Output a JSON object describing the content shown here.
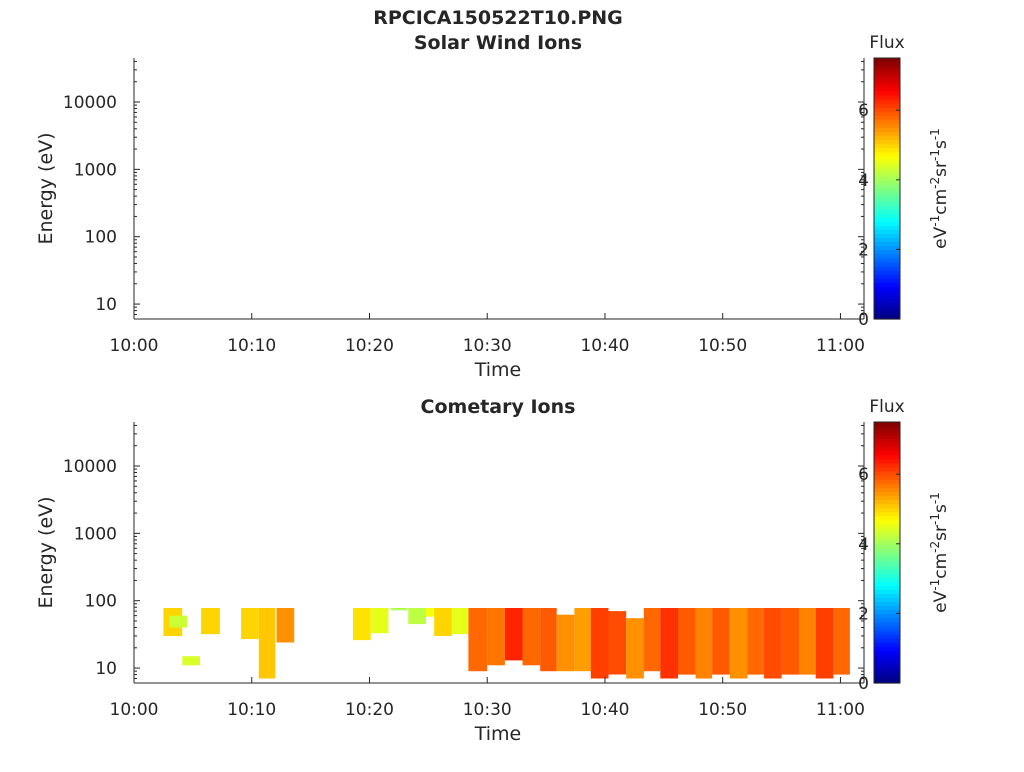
{
  "main_title": "RPCICA150522T10.PNG",
  "colorbar": {
    "label": "Flux",
    "unit_parts": [
      "eV",
      "-1",
      "cm",
      "-2",
      "sr",
      "-1",
      "s",
      "-1"
    ],
    "ticks": [
      "0",
      "2",
      "4",
      "6"
    ],
    "range": [
      0,
      7.5
    ],
    "colormap": "jet"
  },
  "chart_data": [
    {
      "type": "heatmap",
      "title": "Solar Wind Ions",
      "xlabel": "Time",
      "ylabel": "Energy (eV)",
      "x_ticks": [
        "10:00",
        "10:10",
        "10:20",
        "10:30",
        "10:40",
        "10:50",
        "11:00"
      ],
      "x_range_minutes": [
        0,
        62
      ],
      "y_scale": "log",
      "y_ticks": [
        "10",
        "100",
        "1000",
        "10000"
      ],
      "y_range": [
        6,
        45000
      ],
      "cells": []
    },
    {
      "type": "heatmap",
      "title": "Cometary Ions",
      "xlabel": "Time",
      "ylabel": "Energy (eV)",
      "x_ticks": [
        "10:00",
        "10:10",
        "10:20",
        "10:30",
        "10:40",
        "10:50",
        "11:00"
      ],
      "x_range_minutes": [
        0,
        62
      ],
      "y_scale": "log",
      "y_ticks": [
        "10",
        "100",
        "1000",
        "10000"
      ],
      "y_range": [
        6,
        45000
      ],
      "cells": [
        {
          "t": [
            2.5,
            4.1
          ],
          "e": [
            30,
            78
          ],
          "flux": 5.0
        },
        {
          "t": [
            3.0,
            4.5
          ],
          "e": [
            40,
            60
          ],
          "flux": 4.3
        },
        {
          "t": [
            4.1,
            5.6
          ],
          "e": [
            11,
            15
          ],
          "flux": 4.4
        },
        {
          "t": [
            5.7,
            7.3
          ],
          "e": [
            32,
            78
          ],
          "flux": 5.0
        },
        {
          "t": [
            9.1,
            10.6
          ],
          "e": [
            27,
            78
          ],
          "flux": 5.0
        },
        {
          "t": [
            10.6,
            12.0
          ],
          "e": [
            7,
            78
          ],
          "flux": 5.1
        },
        {
          "t": [
            12.1,
            13.6
          ],
          "e": [
            24,
            78
          ],
          "flux": 5.5
        },
        {
          "t": [
            18.6,
            20.1
          ],
          "e": [
            26,
            78
          ],
          "flux": 4.9
        },
        {
          "t": [
            20.1,
            21.6
          ],
          "e": [
            33,
            78
          ],
          "flux": 4.5
        },
        {
          "t": [
            21.8,
            23.2
          ],
          "e": [
            72,
            78
          ],
          "flux": 4.1
        },
        {
          "t": [
            23.3,
            24.8
          ],
          "e": [
            45,
            78
          ],
          "flux": 4.2
        },
        {
          "t": [
            24.8,
            26.2
          ],
          "e": [
            58,
            78
          ],
          "flux": 4.6
        },
        {
          "t": [
            25.5,
            27.0
          ],
          "e": [
            30,
            78
          ],
          "flux": 5.0
        },
        {
          "t": [
            27.0,
            28.4
          ],
          "e": [
            32,
            78
          ],
          "flux": 4.5
        },
        {
          "t": [
            28.4,
            30.0
          ],
          "e": [
            9,
            78
          ],
          "flux": 5.8
        },
        {
          "t": [
            30.0,
            31.5
          ],
          "e": [
            11,
            78
          ],
          "flux": 5.7
        },
        {
          "t": [
            31.5,
            33.0
          ],
          "e": [
            13,
            78
          ],
          "flux": 6.3
        },
        {
          "t": [
            33.0,
            34.5
          ],
          "e": [
            11,
            78
          ],
          "flux": 5.8
        },
        {
          "t": [
            34.5,
            35.9
          ],
          "e": [
            9,
            78
          ],
          "flux": 5.9
        },
        {
          "t": [
            35.9,
            37.4
          ],
          "e": [
            9,
            62
          ],
          "flux": 5.5
        },
        {
          "t": [
            37.4,
            38.8
          ],
          "e": [
            9,
            78
          ],
          "flux": 5.4
        },
        {
          "t": [
            38.8,
            40.3
          ],
          "e": [
            7,
            78
          ],
          "flux": 6.1
        },
        {
          "t": [
            40.3,
            41.8
          ],
          "e": [
            8,
            70
          ],
          "flux": 6.0
        },
        {
          "t": [
            41.8,
            43.3
          ],
          "e": [
            7,
            55
          ],
          "flux": 5.5
        },
        {
          "t": [
            43.3,
            44.7
          ],
          "e": [
            9,
            78
          ],
          "flux": 5.8
        },
        {
          "t": [
            44.7,
            46.2
          ],
          "e": [
            7,
            78
          ],
          "flux": 6.2
        },
        {
          "t": [
            46.2,
            47.7
          ],
          "e": [
            8,
            78
          ],
          "flux": 5.9
        },
        {
          "t": [
            47.7,
            49.1
          ],
          "e": [
            7,
            78
          ],
          "flux": 5.6
        },
        {
          "t": [
            49.1,
            50.6
          ],
          "e": [
            8,
            78
          ],
          "flux": 5.9
        },
        {
          "t": [
            50.6,
            52.1
          ],
          "e": [
            7,
            78
          ],
          "flux": 5.5
        },
        {
          "t": [
            52.1,
            53.5
          ],
          "e": [
            8,
            78
          ],
          "flux": 5.8
        },
        {
          "t": [
            53.5,
            55.0
          ],
          "e": [
            7,
            78
          ],
          "flux": 6.0
        },
        {
          "t": [
            55.0,
            56.5
          ],
          "e": [
            8,
            78
          ],
          "flux": 5.9
        },
        {
          "t": [
            56.5,
            57.9
          ],
          "e": [
            8,
            78
          ],
          "flux": 5.6
        },
        {
          "t": [
            57.9,
            59.4
          ],
          "e": [
            7,
            78
          ],
          "flux": 6.1
        },
        {
          "t": [
            59.4,
            60.8
          ],
          "e": [
            8,
            78
          ],
          "flux": 5.8
        }
      ]
    }
  ]
}
